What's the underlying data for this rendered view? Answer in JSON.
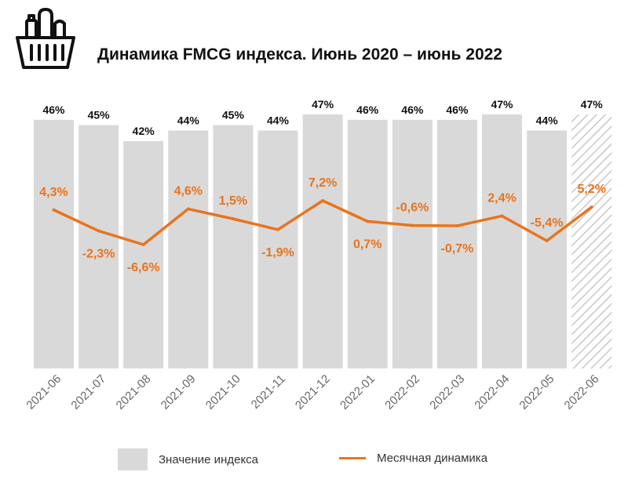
{
  "chart_data": {
    "type": "bar+line",
    "title": "Динамика FMCG индекса. Июнь 2020 – июнь 2022",
    "categories": [
      "2021-06",
      "2021-07",
      "2021-08",
      "2021-09",
      "2021-10",
      "2021-11",
      "2021-12",
      "2022-01",
      "2022-02",
      "2022-03",
      "2022-04",
      "2022-05",
      "2022-06"
    ],
    "series": [
      {
        "name": "Значение индекса",
        "type": "bar",
        "color": "#d9d9d9",
        "values": [
          46,
          45,
          42,
          44,
          45,
          44,
          47,
          46,
          46,
          46,
          47,
          44,
          47
        ],
        "labels": [
          "46%",
          "45%",
          "42%",
          "44%",
          "45%",
          "44%",
          "47%",
          "46%",
          "46%",
          "46%",
          "47%",
          "44%",
          "47%"
        ],
        "last_bar_hatched": true
      },
      {
        "name": "Месячная динамика",
        "type": "line",
        "color": "#e8741e",
        "values": [
          4.3,
          -2.3,
          -6.6,
          4.6,
          1.5,
          -1.9,
          7.2,
          0.7,
          -0.6,
          -0.7,
          2.4,
          -5.4,
          5.2
        ],
        "labels": [
          "4,3%",
          "-2,3%",
          "-6,6%",
          "4,6%",
          "1,5%",
          "-1,9%",
          "7,2%",
          "0,7%",
          "-0,6%",
          "-0,7%",
          "2,4%",
          "-5,4%",
          "5,2%"
        ],
        "label_side": [
          "above",
          "below",
          "below",
          "above",
          "above",
          "below",
          "above",
          "below",
          "above",
          "below",
          "above",
          "above",
          "above"
        ]
      }
    ],
    "ylim_bars": [
      0,
      60
    ],
    "legend": [
      "Значение индекса",
      "Месячная динамика"
    ]
  }
}
